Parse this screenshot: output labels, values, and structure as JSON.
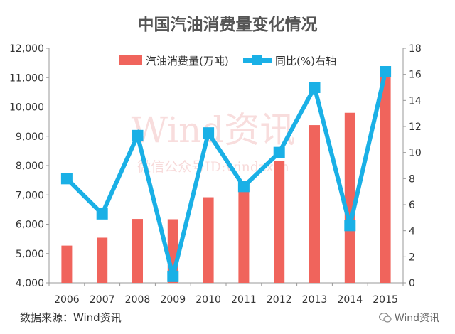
{
  "chart_data": {
    "type": "bar+line",
    "title": "中国汽油消费量变化情况",
    "categories": [
      "2006",
      "2007",
      "2008",
      "2009",
      "2010",
      "2011",
      "2012",
      "2013",
      "2014",
      "2015"
    ],
    "series": [
      {
        "name": "汽油消费量(万吨)",
        "type": "bar",
        "axis": "left",
        "color": "#f0645c",
        "values": [
          5270,
          5540,
          6180,
          6170,
          6920,
          7280,
          8150,
          9380,
          9800,
          11050
        ]
      },
      {
        "name": "同比(%)右轴",
        "type": "line",
        "axis": "right",
        "color": "#1ab0e6",
        "values": [
          8.0,
          5.3,
          11.3,
          0.5,
          11.5,
          7.4,
          10.0,
          15.0,
          4.4,
          16.2
        ]
      }
    ],
    "y_left": {
      "min": 4000,
      "max": 12000,
      "ticks": [
        "4,000",
        "5,000",
        "6,000",
        "7,000",
        "8,000",
        "9,000",
        "10,000",
        "11,000",
        "12,000"
      ]
    },
    "y_right": {
      "min": 0,
      "max": 18,
      "ticks": [
        "0",
        "2",
        "4",
        "6",
        "8",
        "10",
        "12",
        "14",
        "16",
        "18"
      ]
    },
    "legend_position": "top",
    "grid": false
  },
  "watermark": {
    "line1": "Wind资讯",
    "line2": "微信公众号ID:windzxsh"
  },
  "footer": {
    "source": "数据来源：Wind资讯",
    "brand": "Wind资讯"
  }
}
